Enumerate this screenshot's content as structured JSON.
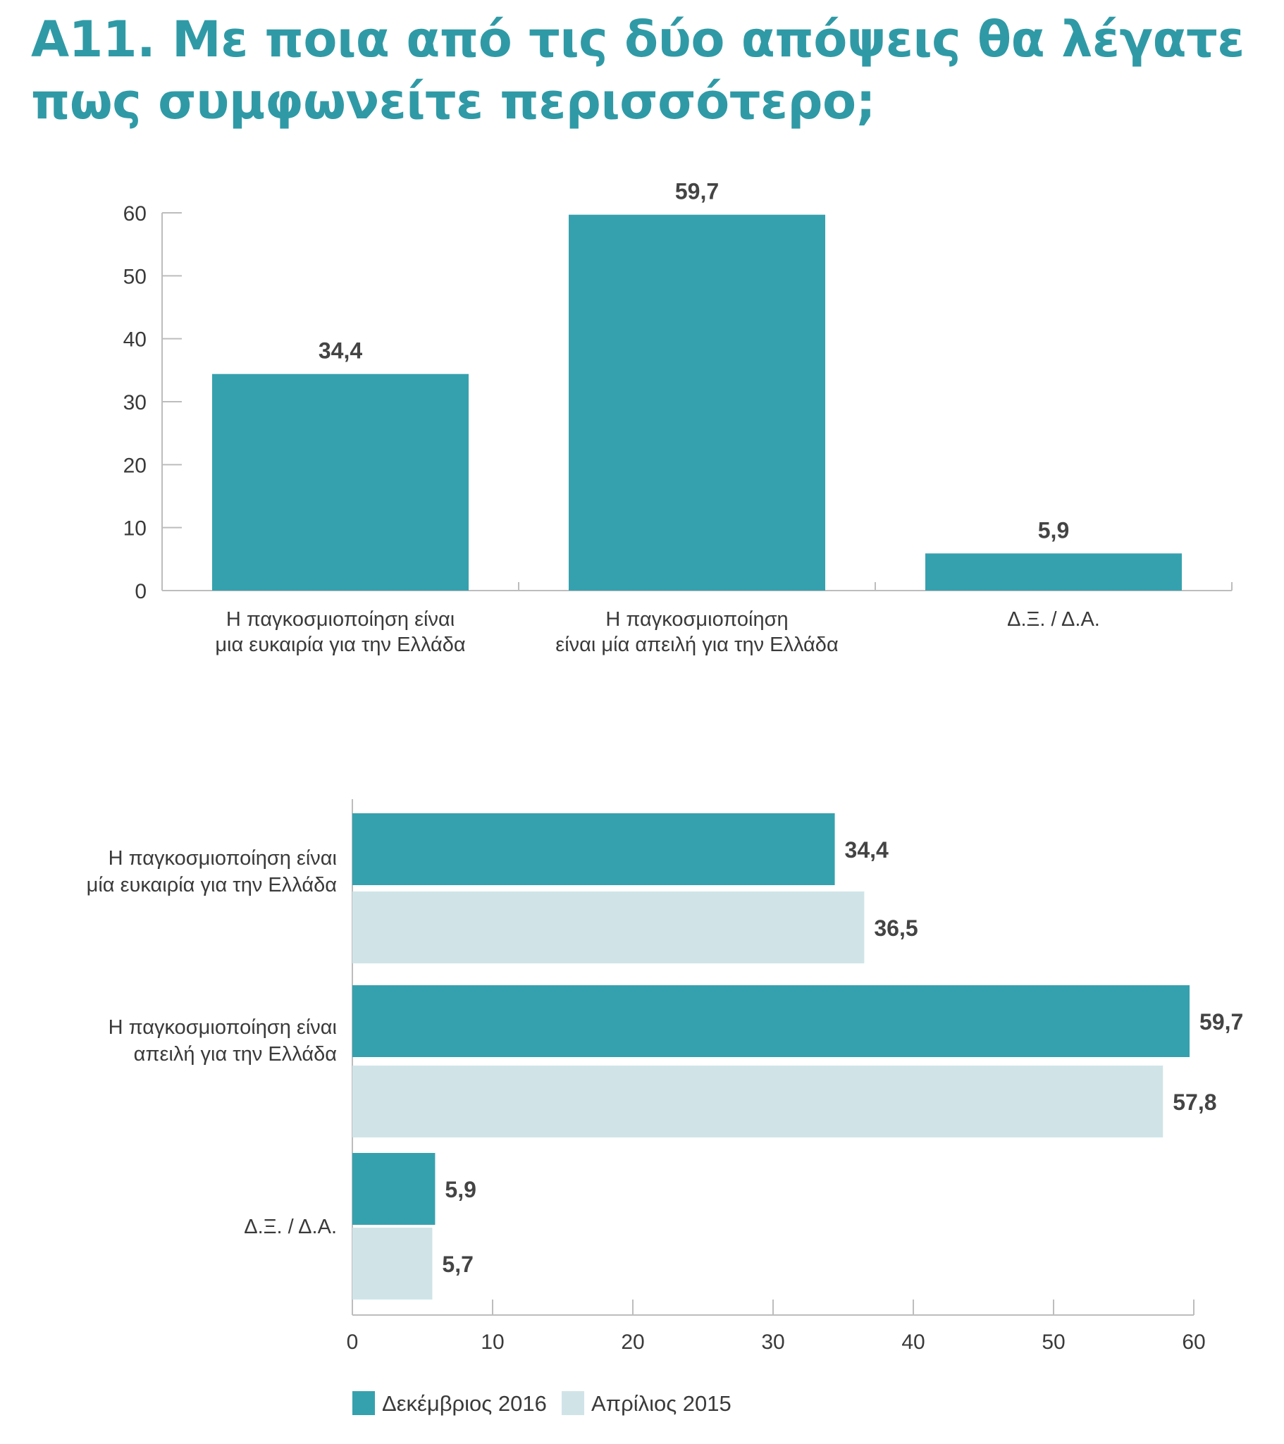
{
  "title": {
    "line1": "Α11. Με ποια από τις δύο απόψεις θα λέγατε",
    "line2": "πως συμφωνείτε περισσότερο;"
  },
  "colors": {
    "primary": "#36a1ae",
    "secondary": "#d0e4e8",
    "axis": "#bdbdbd",
    "title": "#2f9aa6"
  },
  "chart_data": [
    {
      "type": "bar",
      "orientation": "vertical",
      "categories": [
        [
          "Η παγκοσμιοποίηση είναι",
          "μια ευκαιρία για την Ελλάδα"
        ],
        [
          "Η παγκοσμιοποίηση",
          "είναι μία απειλή για την Ελλάδα"
        ],
        [
          "Δ.Ξ. / Δ.Α."
        ]
      ],
      "values": [
        34.4,
        59.7,
        5.9
      ],
      "value_labels": [
        "34,4",
        "59,7",
        "5,9"
      ],
      "ylim": [
        0,
        60
      ],
      "yticks": [
        0,
        10,
        20,
        30,
        40,
        50,
        60
      ],
      "grid": false
    },
    {
      "type": "bar",
      "orientation": "horizontal",
      "categories": [
        [
          "Η παγκοσμιοποίηση είναι",
          "μία ευκαιρία για την Ελλάδα"
        ],
        [
          "Η παγκοσμιοποίηση είναι",
          "απειλή για την Ελλάδα"
        ],
        [
          "Δ.Ξ. / Δ.Α."
        ]
      ],
      "series": [
        {
          "name": "Δεκέμβριος 2016",
          "values": [
            34.4,
            59.7,
            5.9
          ],
          "value_labels": [
            "34,4",
            "59,7",
            "5,9"
          ]
        },
        {
          "name": "Απρίλιος 2015",
          "values": [
            36.5,
            57.8,
            5.7
          ],
          "value_labels": [
            "36,5",
            "57,8",
            "5,7"
          ]
        }
      ],
      "xlim": [
        0,
        60
      ],
      "xticks": [
        0,
        10,
        20,
        30,
        40,
        50,
        60
      ],
      "legend_position": "bottom-left",
      "grid": false
    }
  ]
}
